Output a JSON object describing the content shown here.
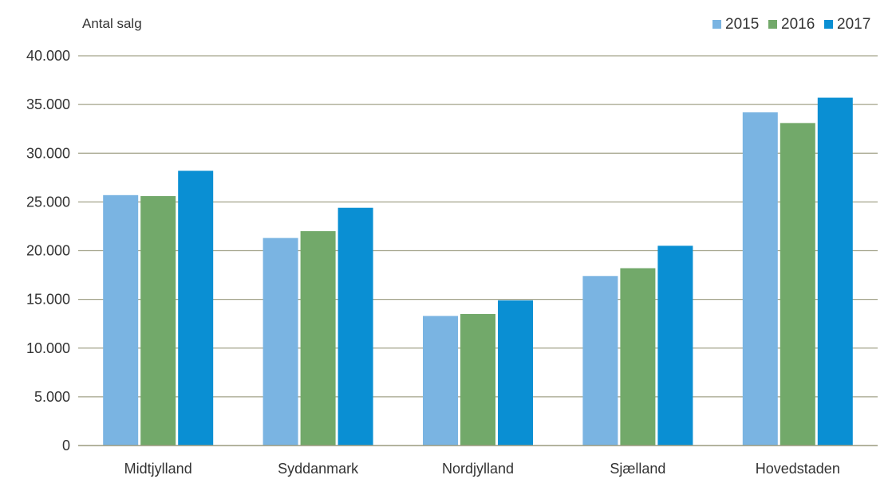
{
  "chart_data": {
    "type": "bar",
    "ylabel": "Antal salg",
    "categories": [
      "Midtjylland",
      "Syddanmark",
      "Nordjylland",
      "Sjælland",
      "Hovedstaden"
    ],
    "series": [
      {
        "name": "2015",
        "color": "#7ab4e2",
        "values": [
          25700,
          21300,
          13300,
          17400,
          34200
        ]
      },
      {
        "name": "2016",
        "color": "#72a96a",
        "values": [
          25600,
          22000,
          13500,
          18200,
          33100
        ]
      },
      {
        "name": "2017",
        "color": "#0a8fd3",
        "values": [
          28200,
          24400,
          14900,
          20500,
          35700
        ]
      }
    ],
    "ylim": [
      0,
      40000
    ],
    "yticks": [
      0,
      5000,
      10000,
      15000,
      20000,
      25000,
      30000,
      35000,
      40000
    ],
    "ytick_labels": [
      "0",
      "5.000",
      "10.000",
      "15.000",
      "20.000",
      "25.000",
      "30.000",
      "35.000",
      "40.000"
    ],
    "grid": true,
    "legend_position": "top-right"
  }
}
